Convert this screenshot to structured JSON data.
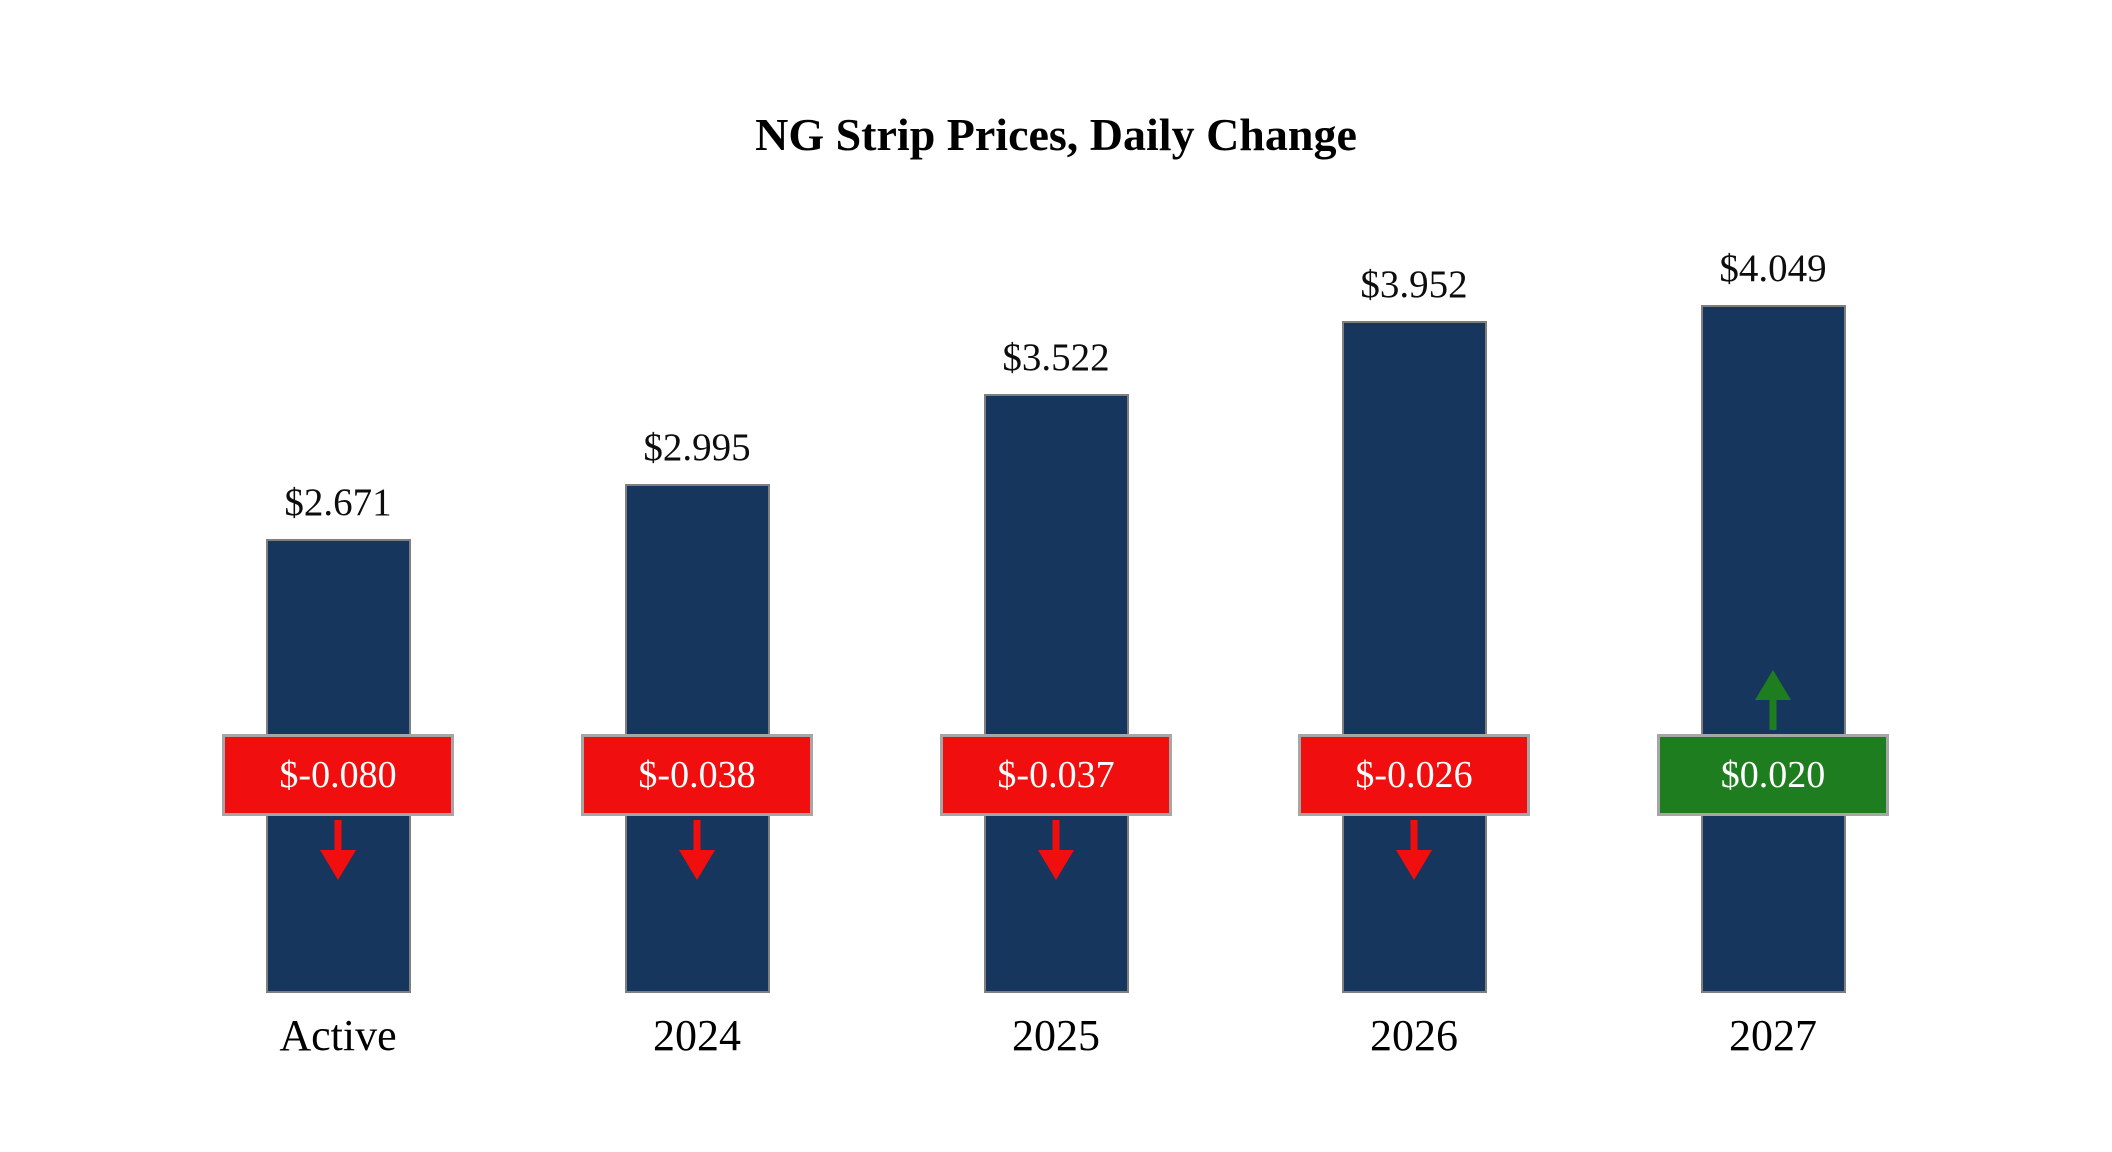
{
  "title": "NG Strip Prices, Daily Change",
  "chart_data": {
    "type": "bar",
    "title": "NG Strip Prices, Daily Change",
    "categories": [
      "Active",
      "2024",
      "2025",
      "2026",
      "2027"
    ],
    "values": [
      2.671,
      2.995,
      3.522,
      3.952,
      4.049
    ],
    "value_labels": [
      "$2.671",
      "$2.995",
      "$3.522",
      "$3.952",
      "$4.049"
    ],
    "changes": [
      -0.08,
      -0.038,
      -0.037,
      -0.026,
      0.02
    ],
    "change_labels": [
      "$-0.080",
      "$-0.038",
      "$-0.037",
      "$-0.026",
      "$0.020"
    ],
    "change_directions": [
      "down",
      "down",
      "down",
      "down",
      "up"
    ],
    "xlabel": "",
    "ylabel": "",
    "ylim": [
      0,
      4.5
    ],
    "grid": false,
    "legend": "none",
    "colors": {
      "bar": "#17365D",
      "decrease": "#F10E0E",
      "increase": "#1E7D1E",
      "bar_border": "#7F7F7F",
      "badge_border": "#A6A6A6",
      "badge_text": "#FFFFFF",
      "label_text": "#0D0D0D",
      "background": "#FFFFFF"
    }
  }
}
